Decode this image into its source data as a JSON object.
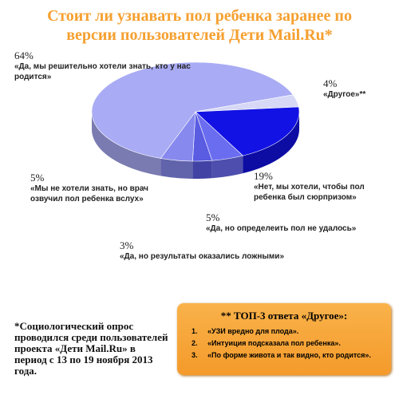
{
  "chart_data": {
    "type": "pie",
    "title": "Стоит ли узнавать пол ребенка заранее по версии пользователей Дети Mail.Ru*",
    "categories": [
      "«Да, мы решительно хотели знать, кто у нас родится»",
      "«Другое»**",
      "«Нет, мы хотели, чтобы пол ребенка был сюрпризом»",
      "«Да, но определеить пол не удалось»",
      "«Да, но результаты оказались ложными»",
      "«Мы не хотели знать, но врач озвучил пол ребенка вслух»"
    ],
    "values": [
      64,
      4,
      19,
      5,
      3,
      5
    ],
    "value_labels": [
      "64%",
      "4%",
      "19%",
      "5%",
      "3%",
      "5%"
    ],
    "colors": [
      "#a9abf4",
      "#d6d8f6",
      "#1212e4",
      "#6b6df0",
      "#5a5ce2",
      "#8789ee"
    ]
  },
  "footnote": "*Социологический опрос проводился среди пользователей проекта «Дети Mail.Ru» в период с 13 по 19 ноября 2013 года.",
  "box": {
    "title": "** ТОП-3 ответа «Другое»:",
    "items": [
      "«УЗИ вредно для плода».",
      "«Интуиция подсказала пол ребенка».",
      "«По форме живота и так видно, кто родится»."
    ]
  }
}
